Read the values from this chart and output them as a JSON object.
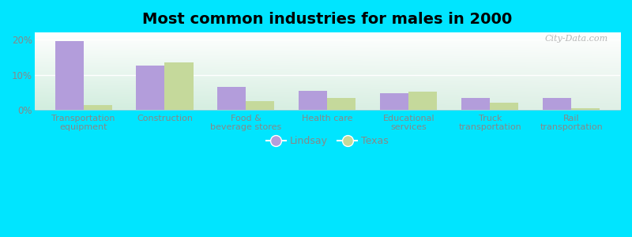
{
  "title": "Most common industries for males in 2000",
  "categories": [
    "Transportation\nequipment",
    "Construction",
    "Food &\nbeverage stores",
    "Health care",
    "Educational\nservices",
    "Truck\ntransportation",
    "Rail\ntransportation"
  ],
  "lindsay_values": [
    19.5,
    12.5,
    6.5,
    5.5,
    4.7,
    3.5,
    3.5
  ],
  "texas_values": [
    1.5,
    13.5,
    2.5,
    3.5,
    5.2,
    2.0,
    0.4
  ],
  "lindsay_color": "#b39ddb",
  "texas_color": "#c5d99b",
  "bg_outer": "#00e5ff",
  "yticks": [
    0,
    10,
    20
  ],
  "ytick_labels": [
    "0%",
    "10%",
    "20%"
  ],
  "ylim": [
    0,
    22
  ],
  "bar_width": 0.35,
  "title_fontsize": 14,
  "label_fontsize": 8,
  "tick_fontsize": 8.5,
  "legend_fontsize": 9,
  "tick_color": "#888888",
  "label_color": "#888888"
}
